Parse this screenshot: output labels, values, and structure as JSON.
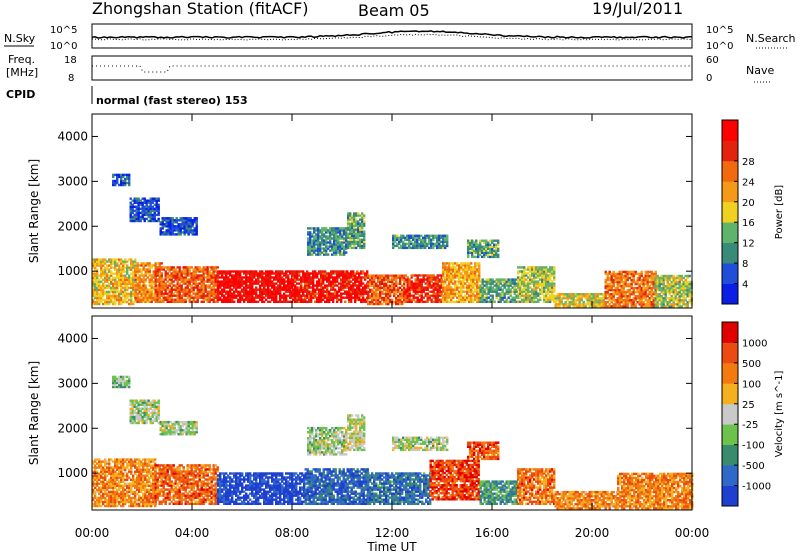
{
  "header": {
    "station": "Zhongshan Station (fitACF)",
    "beam": "Beam 05",
    "date": "19/Jul/2011"
  },
  "panels": {
    "nsky": {
      "label": "N.Sky",
      "left_top": "10^5",
      "left_bottom": "10^0",
      "right_top": "10^5",
      "right_bottom": "10^0",
      "right_label": "N.Search"
    },
    "freq": {
      "label_line1": "Freq.",
      "label_line2": "[MHz]",
      "left_top": "18",
      "left_bottom": "8",
      "right_top": "60",
      "right_bottom": "0",
      "right_label": "Nave"
    },
    "cpid": {
      "label": "CPID",
      "text": "normal (fast stereo) 153"
    }
  },
  "chart_data": [
    {
      "type": "heatmap",
      "title": "Power [dB]",
      "ylabel": "Slant Range [km]",
      "xlabel": "Time UT",
      "x_ticks": [
        "00:00",
        "04:00",
        "08:00",
        "12:00",
        "16:00",
        "20:00",
        "00:00"
      ],
      "y_ticks": [
        "1000",
        "2000",
        "3000",
        "4000"
      ],
      "xlim": [
        0,
        24
      ],
      "ylim": [
        180,
        4500
      ],
      "colorbar": {
        "label": "Power [dB]",
        "ticks": [
          "4",
          "8",
          "12",
          "16",
          "20",
          "24",
          "28"
        ],
        "colors": [
          "#0a1ee6",
          "#1f4ed8",
          "#3a8a7a",
          "#5fb36a",
          "#f0d020",
          "#f59a18",
          "#f26a10",
          "#e4230f",
          "#ff0000"
        ]
      },
      "regions": [
        {
          "t0": 0.0,
          "t1": 1.7,
          "r0": 250,
          "r1": 1250,
          "level": 0.55
        },
        {
          "t0": 1.7,
          "t1": 2.8,
          "r0": 300,
          "r1": 1200,
          "level": 0.65
        },
        {
          "t0": 2.5,
          "t1": 5.0,
          "r0": 300,
          "r1": 1100,
          "level": 0.75
        },
        {
          "t0": 5.0,
          "t1": 8.0,
          "r0": 300,
          "r1": 1000,
          "level": 0.95
        },
        {
          "t0": 8.0,
          "t1": 11.0,
          "r0": 300,
          "r1": 1000,
          "level": 0.9
        },
        {
          "t0": 11.0,
          "t1": 12.5,
          "r0": 250,
          "r1": 900,
          "level": 0.75
        },
        {
          "t0": 12.5,
          "t1": 14.0,
          "r0": 300,
          "r1": 900,
          "level": 0.85
        },
        {
          "t0": 14.0,
          "t1": 15.5,
          "r0": 300,
          "r1": 1200,
          "level": 0.6
        },
        {
          "t0": 15.5,
          "t1": 17.0,
          "r0": 300,
          "r1": 800,
          "level": 0.35
        },
        {
          "t0": 17.0,
          "t1": 18.5,
          "r0": 300,
          "r1": 1100,
          "level": 0.45
        },
        {
          "t0": 18.5,
          "t1": 20.5,
          "r0": 200,
          "r1": 500,
          "level": 0.5
        },
        {
          "t0": 20.5,
          "t1": 22.5,
          "r0": 200,
          "r1": 1000,
          "level": 0.7
        },
        {
          "t0": 22.5,
          "t1": 24.0,
          "r0": 200,
          "r1": 900,
          "level": 0.45
        },
        {
          "t0": 0.8,
          "t1": 1.5,
          "r0": 2900,
          "r1": 3150,
          "level": 0.15
        },
        {
          "t0": 1.5,
          "t1": 2.7,
          "r0": 2100,
          "r1": 2600,
          "level": 0.15
        },
        {
          "t0": 2.7,
          "t1": 4.2,
          "r0": 1800,
          "r1": 2200,
          "level": 0.15
        },
        {
          "t0": 8.6,
          "t1": 10.2,
          "r0": 1350,
          "r1": 1950,
          "level": 0.3
        },
        {
          "t0": 10.2,
          "t1": 10.9,
          "r0": 1500,
          "r1": 2300,
          "level": 0.35
        },
        {
          "t0": 12.0,
          "t1": 14.2,
          "r0": 1500,
          "r1": 1800,
          "level": 0.3
        },
        {
          "t0": 15.0,
          "t1": 16.2,
          "r0": 1300,
          "r1": 1700,
          "level": 0.35
        }
      ]
    },
    {
      "type": "heatmap",
      "title": "Velocity [m s^-1]",
      "ylabel": "Slant Range [km]",
      "xlabel": "Time UT",
      "x_ticks": [
        "00:00",
        "04:00",
        "08:00",
        "12:00",
        "16:00",
        "20:00",
        "00:00"
      ],
      "y_ticks": [
        "1000",
        "2000",
        "3000",
        "4000"
      ],
      "xlim": [
        0,
        24
      ],
      "ylim": [
        180,
        4500
      ],
      "colorbar": {
        "label": "Velocity [m s^-1]",
        "ticks": [
          "1000",
          "500",
          "100",
          "25",
          "-25",
          "-100",
          "-500",
          "-1000"
        ],
        "colors": [
          "#1f3fd0",
          "#2e68c8",
          "#3a8a6e",
          "#6cc24a",
          "#c9c9c9",
          "#f5b020",
          "#f27a10",
          "#ec4a10",
          "#e00000"
        ]
      },
      "regions": [
        {
          "t0": 0.0,
          "t1": 2.5,
          "r0": 250,
          "r1": 1300,
          "level": 0.7
        },
        {
          "t0": 2.5,
          "t1": 5.0,
          "r0": 300,
          "r1": 1200,
          "level": 0.78
        },
        {
          "t0": 5.0,
          "t1": 8.5,
          "r0": 300,
          "r1": 1000,
          "level": 0.05
        },
        {
          "t0": 8.5,
          "t1": 11.0,
          "r0": 300,
          "r1": 1100,
          "level": 0.15
        },
        {
          "t0": 11.0,
          "t1": 13.5,
          "r0": 300,
          "r1": 1000,
          "level": 0.2
        },
        {
          "t0": 13.5,
          "t1": 15.5,
          "r0": 400,
          "r1": 1300,
          "level": 0.85
        },
        {
          "t0": 15.5,
          "t1": 17.0,
          "r0": 300,
          "r1": 800,
          "level": 0.3
        },
        {
          "t0": 17.0,
          "t1": 18.5,
          "r0": 300,
          "r1": 1100,
          "level": 0.75
        },
        {
          "t0": 18.5,
          "t1": 21.0,
          "r0": 200,
          "r1": 600,
          "level": 0.7
        },
        {
          "t0": 21.0,
          "t1": 24.0,
          "r0": 200,
          "r1": 1000,
          "level": 0.72
        },
        {
          "t0": 0.8,
          "t1": 1.5,
          "r0": 2900,
          "r1": 3150,
          "level": 0.4
        },
        {
          "t0": 1.5,
          "t1": 2.7,
          "r0": 2100,
          "r1": 2600,
          "level": 0.45
        },
        {
          "t0": 2.7,
          "t1": 4.2,
          "r0": 1850,
          "r1": 2150,
          "level": 0.45
        },
        {
          "t0": 8.6,
          "t1": 10.2,
          "r0": 1400,
          "r1": 2000,
          "level": 0.45
        },
        {
          "t0": 10.2,
          "t1": 10.9,
          "r0": 1500,
          "r1": 2300,
          "level": 0.48
        },
        {
          "t0": 12.0,
          "t1": 14.2,
          "r0": 1500,
          "r1": 1800,
          "level": 0.45
        },
        {
          "t0": 15.0,
          "t1": 16.2,
          "r0": 1300,
          "r1": 1700,
          "level": 0.8
        }
      ]
    }
  ]
}
